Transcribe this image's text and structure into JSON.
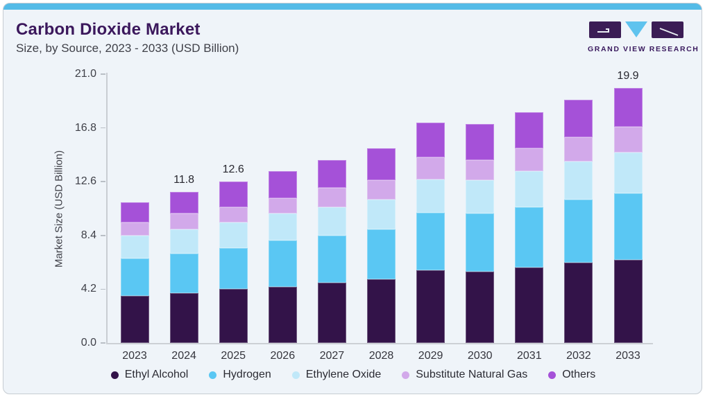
{
  "header": {
    "title": "Carbon Dioxide Market",
    "subtitle": "Size, by Source, 2023 - 2033 (USD Billion)",
    "logo_text": "GRAND VIEW RESEARCH"
  },
  "brand_colors": {
    "accent_strip": "#54bbe7",
    "title_purple": "#3b185c",
    "logo_purple": "#3b1d55",
    "logo_cyan": "#5fc3ee"
  },
  "chart_data": {
    "type": "bar",
    "stacked": true,
    "title": "Carbon Dioxide Market Size, by Source, 2023 - 2033 (USD Billion)",
    "categories": [
      "2023",
      "2024",
      "2025",
      "2026",
      "2027",
      "2028",
      "2029",
      "2030",
      "2031",
      "2032",
      "2033"
    ],
    "series": [
      {
        "name": "Ethyl Alcohol",
        "color": "#331349",
        "values": [
          3.7,
          3.9,
          4.2,
          4.4,
          4.7,
          5.0,
          5.7,
          5.6,
          5.9,
          6.3,
          6.5
        ]
      },
      {
        "name": "Hydrogen",
        "color": "#5ac7f3",
        "values": [
          2.9,
          3.1,
          3.2,
          3.6,
          3.7,
          3.9,
          4.5,
          4.5,
          4.7,
          4.9,
          5.2
        ]
      },
      {
        "name": "Ethylene Oxide",
        "color": "#c0e8f9",
        "values": [
          1.8,
          1.9,
          2.0,
          2.1,
          2.2,
          2.3,
          2.6,
          2.6,
          2.8,
          3.0,
          3.2
        ]
      },
      {
        "name": "Substitute Natural Gas",
        "color": "#d2a9ea",
        "values": [
          1.0,
          1.2,
          1.2,
          1.2,
          1.5,
          1.5,
          1.7,
          1.6,
          1.8,
          1.9,
          2.0
        ]
      },
      {
        "name": "Others",
        "color": "#a551d8",
        "values": [
          1.6,
          1.7,
          2.0,
          2.1,
          2.2,
          2.5,
          2.7,
          2.8,
          2.8,
          2.9,
          3.0
        ]
      }
    ],
    "bar_value_labels": {
      "2024": "11.8",
      "2025": "12.6",
      "2033": "19.9"
    },
    "ylabel": "Market Size (USD Billion)",
    "ytick_labels": [
      "0.0",
      "4.2",
      "8.4",
      "12.6",
      "16.8",
      "21.0"
    ],
    "yticks": [
      0,
      4.2,
      8.4,
      12.6,
      16.8,
      21
    ],
    "ylim": [
      0,
      21
    ],
    "grid": false,
    "legend_position": "bottom"
  }
}
